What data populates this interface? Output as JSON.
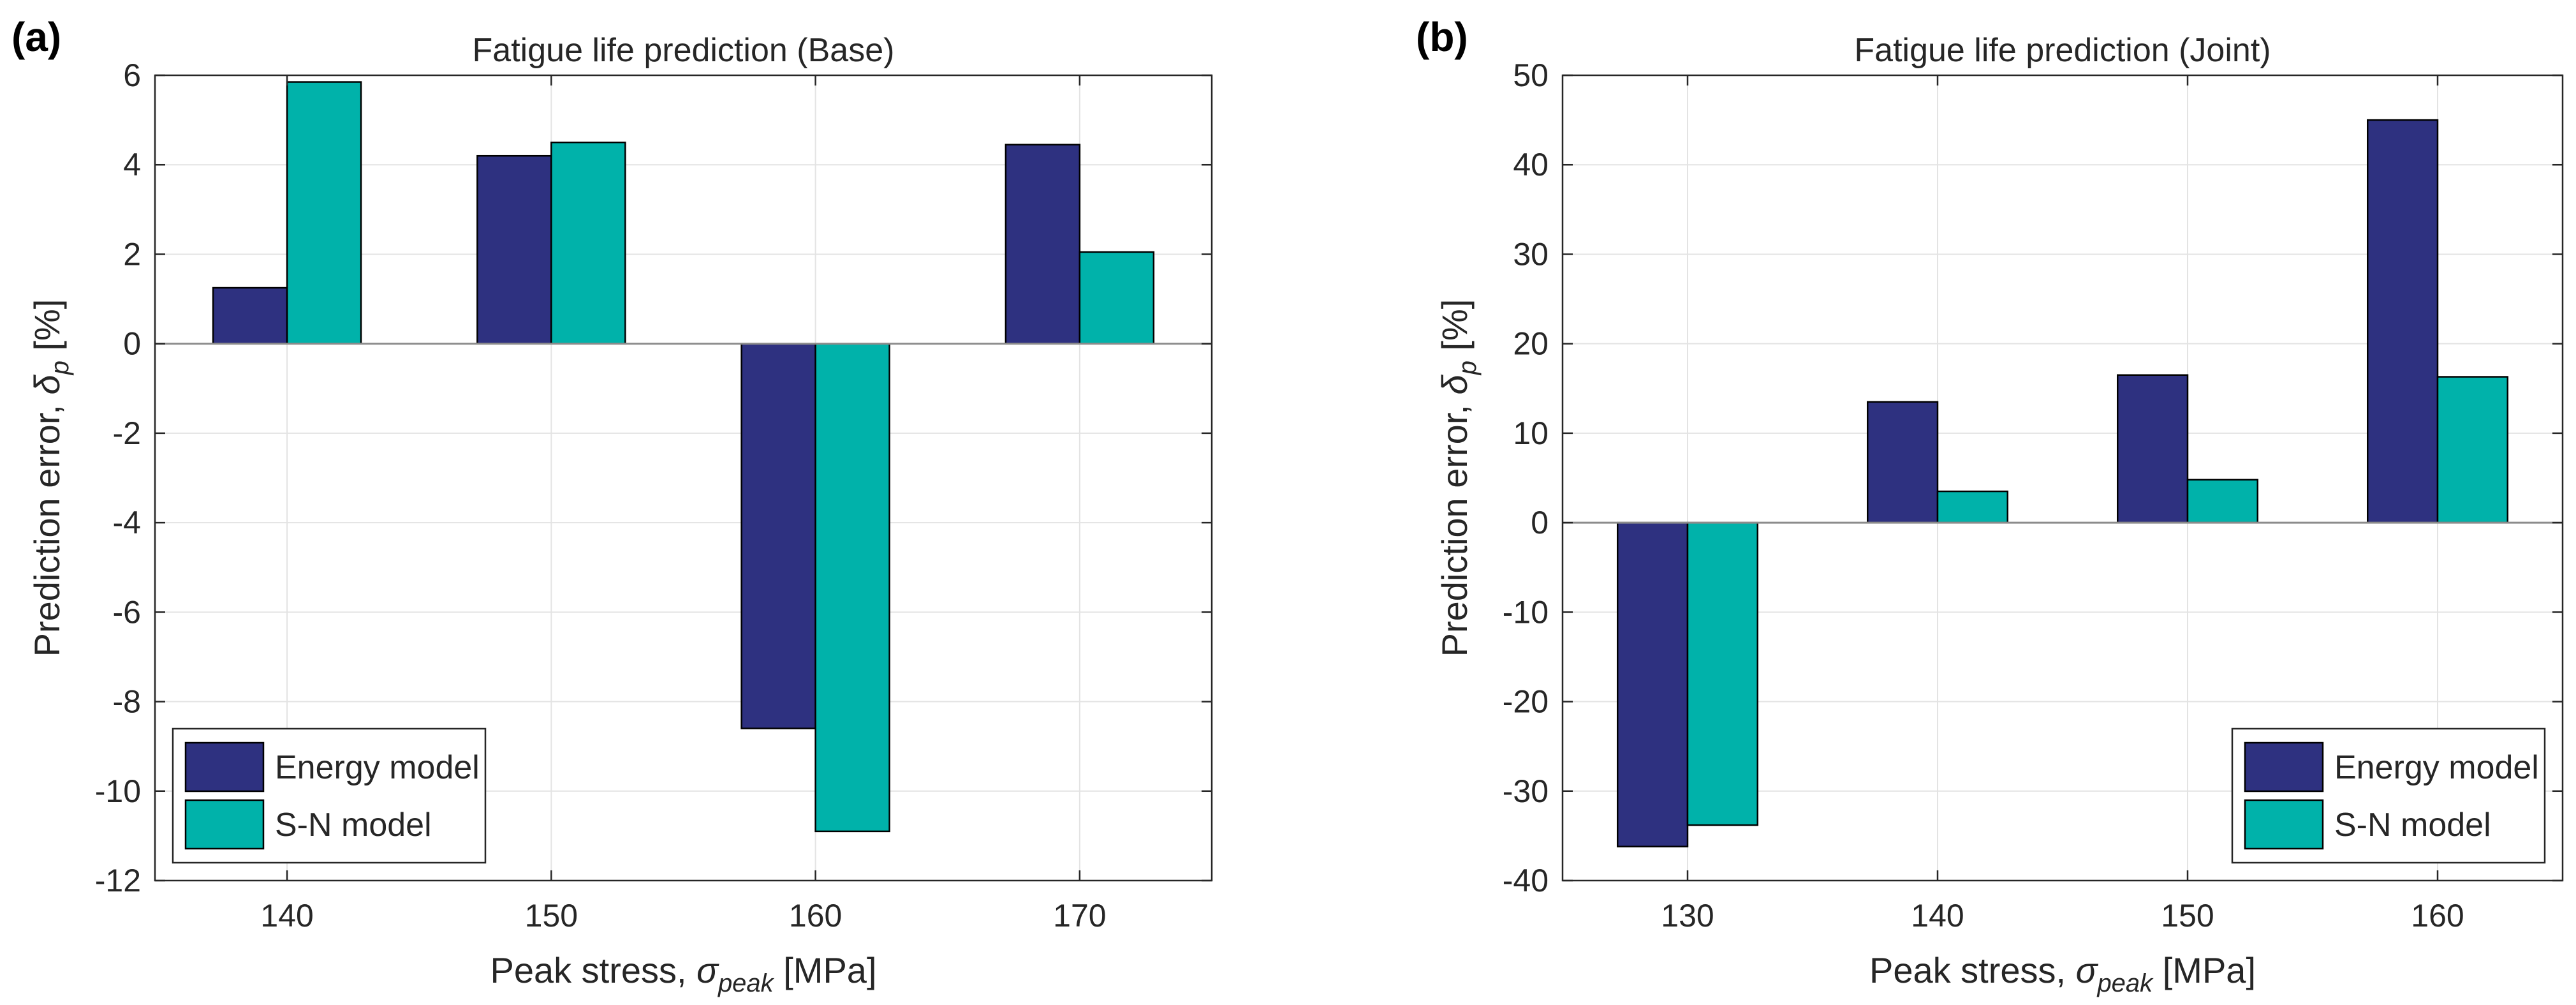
{
  "chart_data": [
    {
      "panel_label": "(a)",
      "type": "bar",
      "title": "Fatigue life prediction (Base)",
      "xlabel": "Peak stress, ",
      "xlabel_symbol": "σ",
      "xlabel_sub": "peak",
      "xlabel_unit": " [MPa]",
      "ylabel": "Prediction error, ",
      "ylabel_symbol": "δ",
      "ylabel_sub": "p",
      "ylabel_unit": " [%]",
      "categories": [
        "140",
        "150",
        "160",
        "170"
      ],
      "ylim": [
        -12,
        6
      ],
      "yticks": [
        -12,
        -10,
        -8,
        -6,
        -4,
        -2,
        0,
        2,
        4,
        6
      ],
      "ytick_labels": [
        "-12",
        "-10",
        "-8",
        "-6",
        "-4",
        "-2",
        "0",
        "2",
        "4",
        "6"
      ],
      "grid": true,
      "legend_position": "bottom-left",
      "series": [
        {
          "name": "Energy model",
          "color": "#2e3180",
          "values": [
            1.25,
            4.2,
            -8.6,
            4.45
          ]
        },
        {
          "name": "S-N model",
          "color": "#00b2aa",
          "values": [
            5.85,
            4.5,
            -10.9,
            2.05
          ]
        }
      ]
    },
    {
      "panel_label": "(b)",
      "type": "bar",
      "title": "Fatigue life prediction (Joint)",
      "xlabel": "Peak stress, ",
      "xlabel_symbol": "σ",
      "xlabel_sub": "peak",
      "xlabel_unit": " [MPa]",
      "ylabel": "Prediction error, ",
      "ylabel_symbol": "δ",
      "ylabel_sub": "p",
      "ylabel_unit": " [%]",
      "categories": [
        "130",
        "140",
        "150",
        "160"
      ],
      "ylim": [
        -40,
        50
      ],
      "yticks": [
        -40,
        -30,
        -20,
        -10,
        0,
        10,
        20,
        30,
        40,
        50
      ],
      "ytick_labels": [
        "-40",
        "-30",
        "-20",
        "-10",
        "0",
        "10",
        "20",
        "30",
        "40",
        "50"
      ],
      "grid": true,
      "legend_position": "bottom-right",
      "series": [
        {
          "name": "Energy model",
          "color": "#2e3180",
          "values": [
            -36.2,
            13.5,
            16.5,
            45.0
          ]
        },
        {
          "name": "S-N model",
          "color": "#00b2aa",
          "values": [
            -33.8,
            3.5,
            4.8,
            16.3
          ]
        }
      ]
    }
  ]
}
